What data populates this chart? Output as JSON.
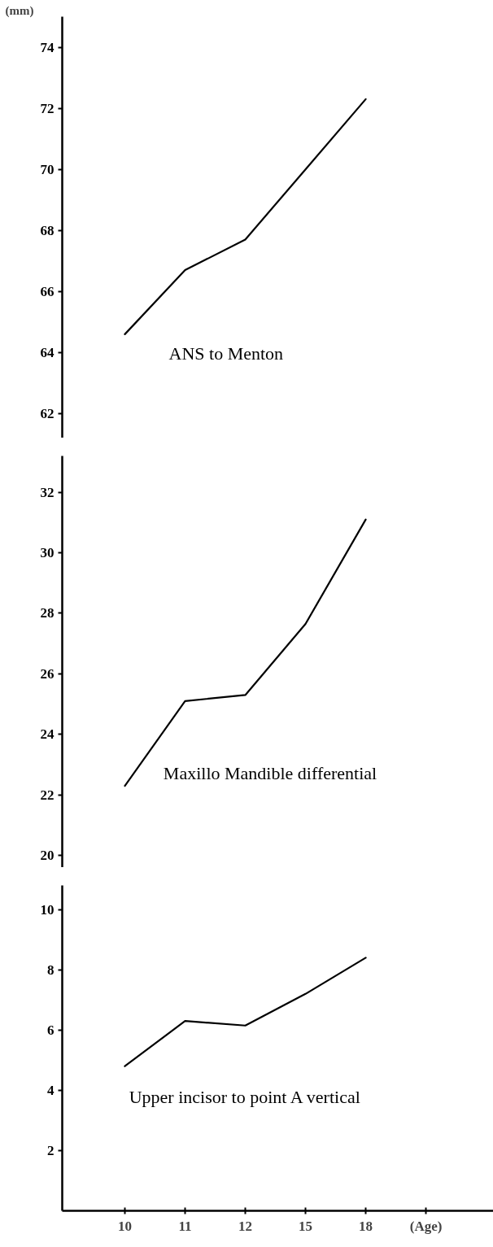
{
  "chart_data": [
    {
      "type": "line",
      "ylabel": "(mm)",
      "categories": [
        "10",
        "11",
        "12",
        "15",
        "18"
      ],
      "series": [
        {
          "name": "ANS to Menton",
          "color": "#000000",
          "values": [
            64.6,
            66.7,
            67.7,
            70.0,
            72.3
          ]
        }
      ],
      "ylim": [
        61.2,
        75
      ],
      "yticks": [
        62,
        64,
        66,
        68,
        70,
        72,
        74
      ],
      "tick_labels": "y"
    },
    {
      "type": "line",
      "categories": [
        "10",
        "11",
        "12",
        "15",
        "18"
      ],
      "series": [
        {
          "name": "Maxillo Mandible differential",
          "color": "#000000",
          "values": [
            22.3,
            25.1,
            25.3,
            27.65,
            31.1
          ]
        }
      ],
      "ylim": [
        19.6,
        33.2
      ],
      "yticks": [
        20,
        22,
        24,
        26,
        28,
        30,
        32
      ],
      "tick_labels": "y"
    },
    {
      "type": "line",
      "xlabel": "(Age)",
      "categories": [
        "10",
        "11",
        "12",
        "15",
        "18"
      ],
      "series": [
        {
          "name": "Upper incisor to point A vertical",
          "color": "#000000",
          "values": [
            4.8,
            6.3,
            6.15,
            7.2,
            8.4
          ]
        }
      ],
      "ylim": [
        0,
        10.8
      ],
      "yticks": [
        2,
        4,
        6,
        8,
        10
      ]
    }
  ]
}
